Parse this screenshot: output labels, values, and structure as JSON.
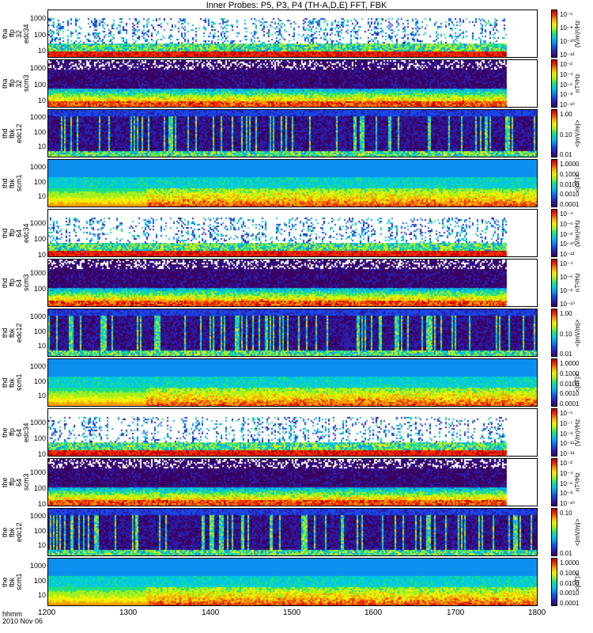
{
  "title": "Inner Probes: P5, P3, P4 (TH-A,D,E) FFT, FBK",
  "x_axis": {
    "label_line1": "hhmm",
    "label_line2": "2010 Nov 06",
    "ticks": [
      "1200",
      "1300",
      "1400",
      "1500",
      "1600",
      "1700",
      "1800"
    ]
  },
  "colormap": [
    "#3a0060",
    "#2a1ea8",
    "#1848e8",
    "#0c90f0",
    "#00c8e0",
    "#20e080",
    "#a0f020",
    "#f0f000",
    "#f8a000",
    "#f03000",
    "#c00000"
  ],
  "chart_data": [
    {
      "type": "heatmap",
      "probe": "tha",
      "ylabel": [
        "tha",
        "ffp",
        "32",
        "edc34"
      ],
      "yticks": [
        "1000",
        "100",
        "10"
      ],
      "ylim": [
        4,
        4096
      ],
      "yscale": "log",
      "xlim": [
        "1200",
        "1800"
      ],
      "cbar_ticks": [
        "10⁻⁶",
        "10⁻⁸",
        "10⁻¹⁰",
        "10⁻¹²"
      ],
      "cbar_unit": "(V/m)²/Hz",
      "style": "sparse"
    },
    {
      "type": "heatmap",
      "probe": "tha",
      "ylabel": [
        "tha",
        "ffp",
        "32",
        "scm3"
      ],
      "yticks": [
        "1000",
        "100",
        "10"
      ],
      "ylim": [
        4,
        4096
      ],
      "yscale": "log",
      "xlim": [
        "1200",
        "1800"
      ],
      "cbar_ticks": [
        "10⁻²",
        "10⁻⁴",
        "10⁻⁶",
        "10⁻⁸",
        "10⁻¹⁰"
      ],
      "cbar_unit": "nT²/Hz",
      "style": "scm"
    },
    {
      "type": "heatmap",
      "probe": "thd",
      "ylabel": [
        "thd",
        "fbk",
        "edc12"
      ],
      "yticks": [
        "1000",
        "100",
        "10"
      ],
      "ylim": [
        2,
        4096
      ],
      "yscale": "log",
      "xlim": [
        "1200",
        "1800"
      ],
      "cbar_ticks": [
        "1.00",
        "0.10",
        "0.01"
      ],
      "cbar_unit": "<|mV/m|>",
      "style": "fbk_e"
    },
    {
      "type": "heatmap",
      "probe": "thd",
      "ylabel": [
        "thd",
        "fbk",
        "scm1"
      ],
      "yticks": [
        "1000",
        "100",
        "10"
      ],
      "ylim": [
        2,
        4096
      ],
      "yscale": "log",
      "xlim": [
        "1200",
        "1800"
      ],
      "cbar_ticks": [
        "1.0000",
        "0.1000",
        "0.0100",
        "0.0010",
        "0.0001"
      ],
      "cbar_unit": "<|nT|>",
      "style": "fbk_b"
    },
    {
      "type": "heatmap",
      "probe": "thd",
      "ylabel": [
        "thd",
        "ffp",
        "64",
        "edc34"
      ],
      "yticks": [
        "1000",
        "100",
        "10"
      ],
      "ylim": [
        8,
        8192
      ],
      "yscale": "log",
      "xlim": [
        "1200",
        "1800"
      ],
      "cbar_ticks": [
        "10⁻⁴",
        "10⁻⁶",
        "10⁻⁸",
        "10⁻¹⁰",
        "10⁻¹²"
      ],
      "cbar_unit": "(V/m)²/Hz",
      "style": "sparse"
    },
    {
      "type": "heatmap",
      "probe": "thd",
      "ylabel": [
        "thd",
        "ffp",
        "64",
        "scm3"
      ],
      "yticks": [
        "1000",
        "100"
      ],
      "ylim": [
        8,
        8192
      ],
      "yscale": "log",
      "xlim": [
        "1200",
        "1800"
      ],
      "cbar_ticks": [
        "10⁻⁴",
        "10⁻⁶",
        "10⁻⁸",
        "10⁻¹⁰"
      ],
      "cbar_unit": "nT²/Hz",
      "style": "scm"
    },
    {
      "type": "heatmap",
      "probe": "thd",
      "ylabel": [
        "thd",
        "fbk",
        "edc12"
      ],
      "yticks": [
        "1000",
        "100",
        "10"
      ],
      "ylim": [
        2,
        4096
      ],
      "yscale": "log",
      "xlim": [
        "1200",
        "1800"
      ],
      "cbar_ticks": [
        "1.00",
        "0.10",
        "0.01"
      ],
      "cbar_unit": "<|mV/m|>",
      "style": "fbk_e"
    },
    {
      "type": "heatmap",
      "probe": "thd",
      "ylabel": [
        "thd",
        "fbk",
        "scm1"
      ],
      "yticks": [
        "1000",
        "100",
        "10"
      ],
      "ylim": [
        2,
        4096
      ],
      "yscale": "log",
      "xlim": [
        "1200",
        "1800"
      ],
      "cbar_ticks": [
        "1.0000",
        "0.1000",
        "0.0100",
        "0.0010",
        "0.0001"
      ],
      "cbar_unit": "<|nT|>",
      "style": "fbk_b"
    },
    {
      "type": "heatmap",
      "probe": "the",
      "ylabel": [
        "the",
        "ffp",
        "64",
        "edc34"
      ],
      "yticks": [
        "1000",
        "100",
        "10"
      ],
      "ylim": [
        8,
        8192
      ],
      "yscale": "log",
      "xlim": [
        "1200",
        "1800"
      ],
      "cbar_ticks": [
        "10⁻⁵",
        "10⁻⁷",
        "10⁻⁹",
        "10⁻¹¹",
        "10⁻¹³"
      ],
      "cbar_unit": "(V/m)²/Hz",
      "style": "sparse"
    },
    {
      "type": "heatmap",
      "probe": "the",
      "ylabel": [
        "the",
        "ffp",
        "64",
        "scm3"
      ],
      "yticks": [
        "1000",
        "100",
        "10"
      ],
      "ylim": [
        8,
        8192
      ],
      "yscale": "log",
      "xlim": [
        "1200",
        "1800"
      ],
      "cbar_ticks": [
        "10⁻²",
        "10⁻⁴",
        "10⁻⁶",
        "10⁻⁸",
        "10⁻¹⁰"
      ],
      "cbar_unit": "nT²/Hz",
      "style": "scm"
    },
    {
      "type": "heatmap",
      "probe": "the",
      "ylabel": [
        "the",
        "fbk",
        "edc12"
      ],
      "yticks": [
        "1000",
        "100",
        "10"
      ],
      "ylim": [
        2,
        4096
      ],
      "yscale": "log",
      "xlim": [
        "1200",
        "1800"
      ],
      "cbar_ticks": [
        "0.10",
        "0.01"
      ],
      "cbar_unit": "<|mV/m|>",
      "style": "fbk_e"
    },
    {
      "type": "heatmap",
      "probe": "the",
      "ylabel": [
        "the",
        "fbk",
        "scm1"
      ],
      "yticks": [
        "1000",
        "100",
        "10"
      ],
      "ylim": [
        2,
        4096
      ],
      "yscale": "log",
      "xlim": [
        "1200",
        "1800"
      ],
      "cbar_ticks": [
        "1.0000",
        "0.1000",
        "0.0100",
        "0.0010",
        "0.0001"
      ],
      "cbar_unit": "<|nT|>",
      "style": "fbk_b"
    }
  ]
}
